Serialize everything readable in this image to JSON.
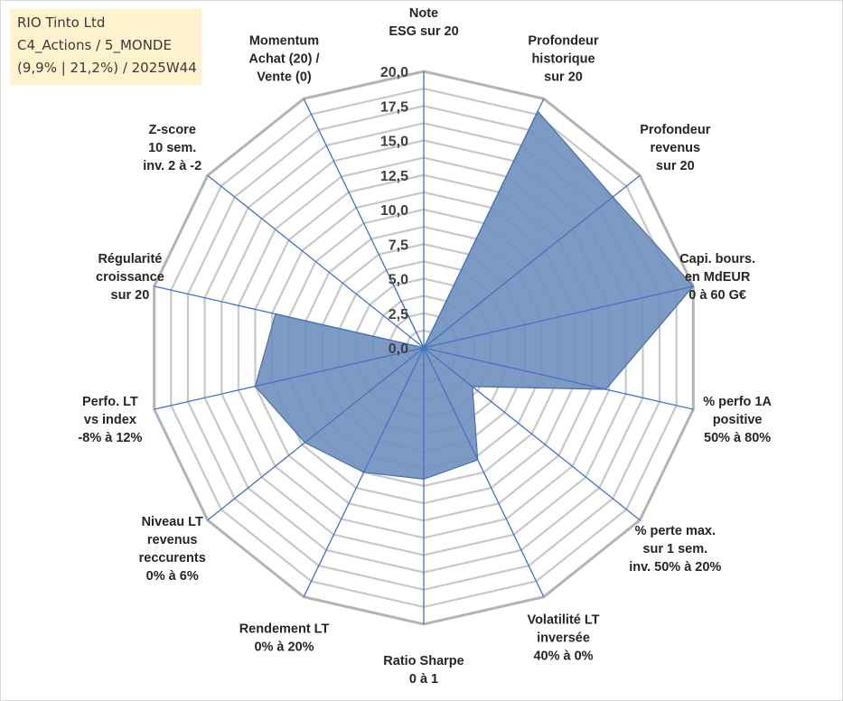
{
  "info_box": {
    "line1": "RIO Tinto Ltd",
    "line2": "C4_Actions / 5_MONDE",
    "line3": "(9,9% | 21,2%) / 2025W44"
  },
  "chart_data": {
    "type": "radar",
    "title": "",
    "range": [
      0,
      20
    ],
    "ticks": [
      "0,0",
      "2,5",
      "5,0",
      "7,5",
      "10,0",
      "12,5",
      "15,0",
      "17,5",
      "20,0"
    ],
    "grid_rings": 16,
    "axes": [
      {
        "label": [
          "Note",
          "ESG sur 20"
        ],
        "value": 0
      },
      {
        "label": [
          "Profondeur",
          "historique",
          "sur 20"
        ],
        "value": 19
      },
      {
        "label": [
          "Profondeur",
          "revenus",
          "sur 20"
        ],
        "value": 17.5
      },
      {
        "label": [
          "Capi. bours.",
          "en MdEUR",
          "0 à 60 G€"
        ],
        "value": 20
      },
      {
        "label": [
          "% perfo 1A",
          "positive",
          "50% à 80%"
        ],
        "value": 13.5
      },
      {
        "label": [
          "% perte max.",
          "sur 1 sem.",
          "inv. 50% à 20%"
        ],
        "value": 4.5
      },
      {
        "label": [
          "Volatilité LT",
          "inversée",
          "40% à 0%"
        ],
        "value": 9
      },
      {
        "label": [
          "Ratio Sharpe",
          "0 à 1"
        ],
        "value": 9.5
      },
      {
        "label": [
          "Rendement LT",
          "0% à 20%"
        ],
        "value": 10
      },
      {
        "label": [
          "Niveau LT",
          "revenus",
          "reccurents",
          "0% à 6%"
        ],
        "value": 11
      },
      {
        "label": [
          "Perfo. LT",
          "vs index",
          "-8% à 12%"
        ],
        "value": 12.5
      },
      {
        "label": [
          "Régularité",
          "croissance",
          "sur 20"
        ],
        "value": 11
      },
      {
        "label": [
          "Z-score",
          "10 sem.",
          "inv. 2 à -2"
        ],
        "value": 0
      },
      {
        "label": [
          "Momentum",
          "Achat (20) /",
          "Vente (0)"
        ],
        "value": 4
      }
    ],
    "colors": {
      "fill": "#6f8fbf",
      "stroke": "#4a6fa5",
      "spoke": "#4472c4",
      "grid": "#c8c8c8",
      "outer_ring": "#b4b4b4"
    }
  }
}
